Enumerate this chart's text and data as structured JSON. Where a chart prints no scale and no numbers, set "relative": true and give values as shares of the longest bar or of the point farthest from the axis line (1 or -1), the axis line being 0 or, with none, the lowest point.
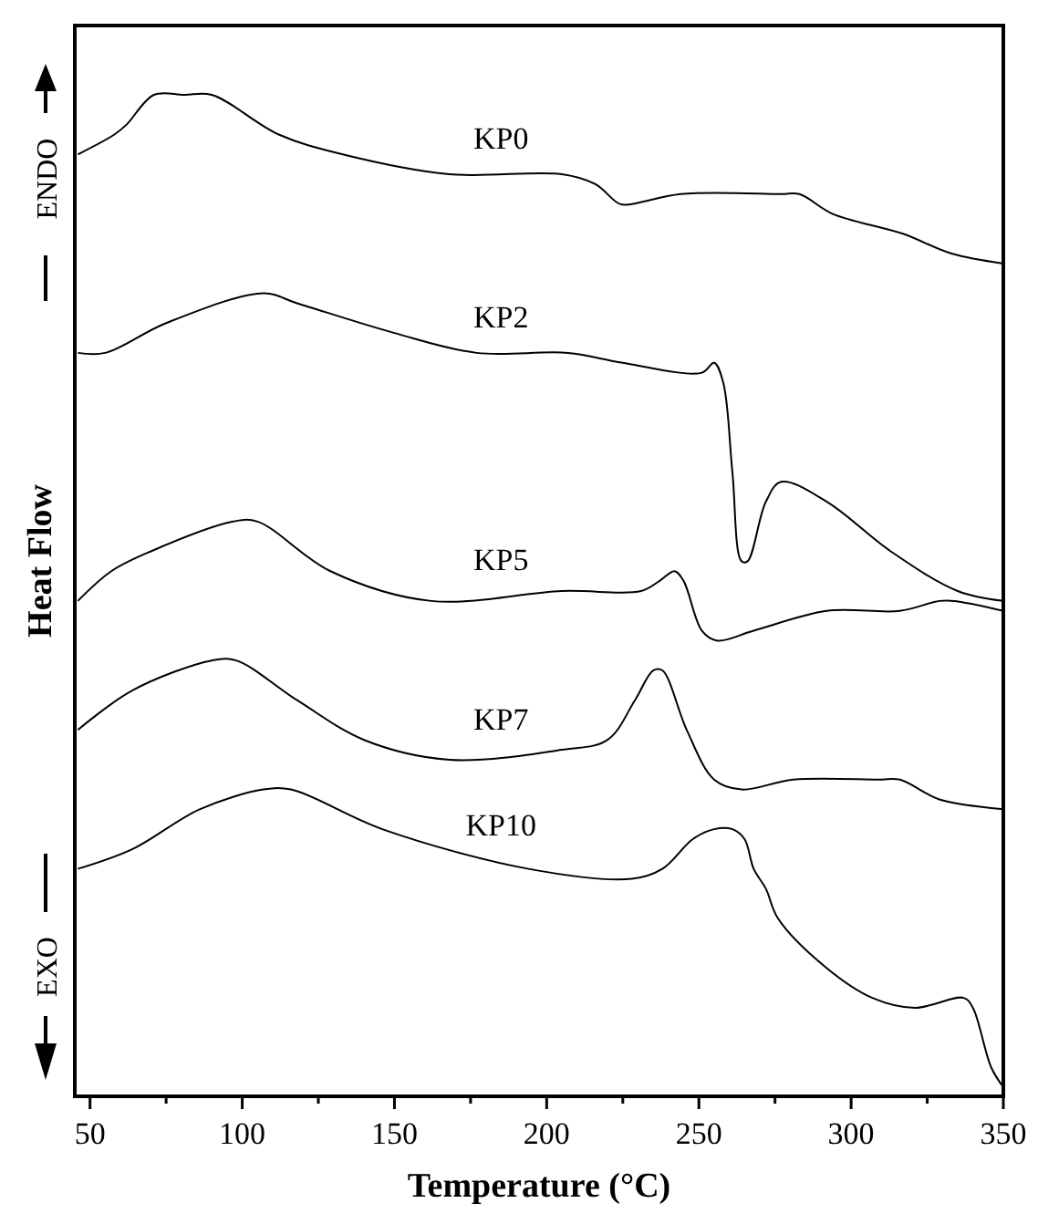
{
  "chart_data": {
    "type": "line",
    "xlabel": "Temperature  (°C)",
    "ylabel": "Heat Flow",
    "relative": true,
    "xlim": [
      45,
      350
    ],
    "xticks": [
      50,
      {
        "value": 75,
        "label": null
      },
      100,
      {
        "value": 125,
        "label": null
      },
      150,
      {
        "value": 175,
        "label": null
      },
      200,
      {
        "value": 225,
        "label": null
      },
      250,
      {
        "value": 275,
        "label": null
      },
      300,
      {
        "value": 325,
        "label": null
      },
      350
    ],
    "annotations": [
      "ENDO",
      "EXO"
    ],
    "marker": "none",
    "line_style": "solid",
    "grid": false,
    "series": [
      {
        "name": "KP0",
        "color": "#000000",
        "x": [
          46,
          58,
          62,
          71,
          81,
          90,
          112,
          133,
          168,
          205,
          216,
          224,
          228,
          244,
          277,
          283,
          294,
          317,
          333,
          350
        ],
        "values": [
          0.94,
          0.96,
          0.97,
          1.0,
          1.0,
          1.0,
          0.96,
          0.94,
          0.92,
          0.92,
          0.91,
          0.89,
          0.89,
          0.9,
          0.9,
          0.9,
          0.88,
          0.86,
          0.84,
          0.83
        ]
      },
      {
        "name": "KP2",
        "color": "#000000",
        "x": [
          46,
          55,
          75,
          107,
          118,
          150,
          177,
          207,
          225,
          251,
          255,
          258,
          261,
          264,
          266,
          272,
          277,
          292,
          313,
          335,
          350
        ],
        "values": [
          0.74,
          0.74,
          0.77,
          0.8,
          0.79,
          0.76,
          0.74,
          0.74,
          0.73,
          0.72,
          0.73,
          0.71,
          0.62,
          0.53,
          0.53,
          0.59,
          0.61,
          0.59,
          0.54,
          0.5,
          0.49
        ]
      },
      {
        "name": "KP5",
        "color": "#000000",
        "x": [
          46,
          57,
          70,
          97,
          105,
          129,
          162,
          205,
          231,
          237,
          242,
          245,
          251,
          256,
          268,
          292,
          316,
          329,
          334,
          350
        ],
        "values": [
          0.49,
          0.52,
          0.54,
          0.57,
          0.57,
          0.52,
          0.49,
          0.5,
          0.5,
          0.51,
          0.52,
          0.51,
          0.46,
          0.45,
          0.46,
          0.48,
          0.48,
          0.49,
          0.49,
          0.48
        ]
      },
      {
        "name": "KP7",
        "color": "#000000",
        "x": [
          46,
          64,
          90,
          98,
          118,
          140,
          168,
          205,
          220,
          229,
          235,
          238,
          246,
          255,
          264,
          281,
          309,
          316,
          329,
          350
        ],
        "values": [
          0.36,
          0.4,
          0.43,
          0.43,
          0.39,
          0.35,
          0.33,
          0.34,
          0.35,
          0.39,
          0.42,
          0.42,
          0.36,
          0.31,
          0.3,
          0.31,
          0.31,
          0.31,
          0.29,
          0.28
        ]
      },
      {
        "name": "KP10",
        "color": "#000000",
        "x": [
          46,
          64,
          86,
          107,
          116,
          146,
          194,
          228,
          238,
          248,
          255,
          261,
          265,
          268,
          272,
          276,
          292,
          307,
          321,
          337,
          340,
          346,
          350
        ],
        "values": [
          0.22,
          0.24,
          0.28,
          0.3,
          0.3,
          0.26,
          0.22,
          0.21,
          0.22,
          0.25,
          0.26,
          0.26,
          0.25,
          0.22,
          0.2,
          0.17,
          0.12,
          0.09,
          0.08,
          0.09,
          0.08,
          0.02,
          0.0
        ]
      }
    ]
  }
}
